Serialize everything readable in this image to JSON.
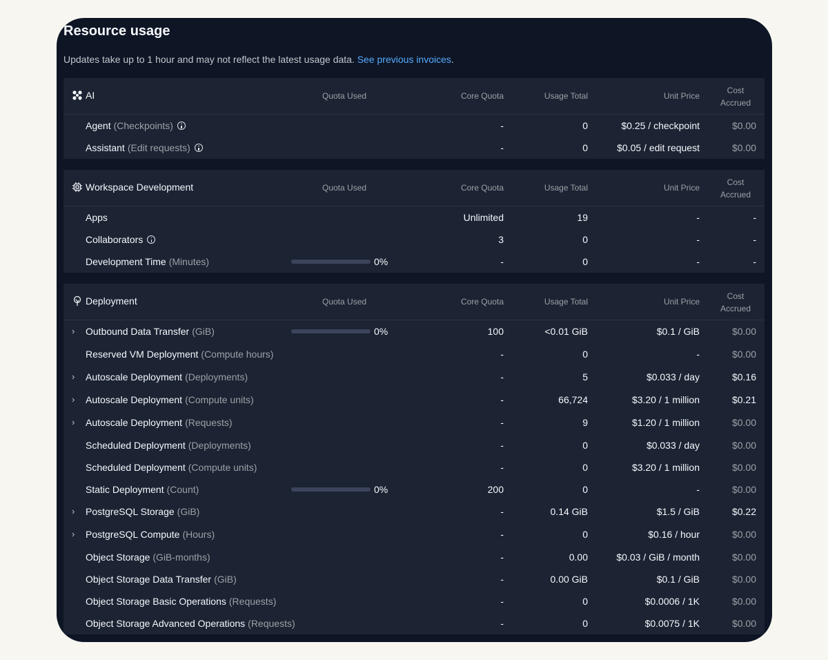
{
  "header": {
    "title": "Resource usage",
    "subtitle": "Updates take up to 1 hour and may not reflect the latest usage data.",
    "link": "See previous invoices",
    "subtitle_end": "."
  },
  "columns": {
    "quota_used": "Quota Used",
    "core_quota": "Core Quota",
    "usage_total": "Usage Total",
    "unit_price": "Unit Price",
    "cost_accrued_1": "Cost",
    "cost_accrued_2": "Accrued"
  },
  "colors": {
    "background": "#0e1525",
    "panel": "#1c2333",
    "link": "#57abff",
    "muted": "#9da2a6"
  },
  "sections": {
    "ai": {
      "title": "AI",
      "icon": "sparkle-grid-icon",
      "rows": [
        {
          "label": "Agent",
          "unit": "(Checkpoints)",
          "core": "-",
          "usage": "0",
          "price": "$0.25 / checkpoint",
          "cost": "$0.00"
        },
        {
          "label": "Assistant",
          "unit": "(Edit requests)",
          "core": "-",
          "usage": "0",
          "price": "$0.05 / edit request",
          "cost": "$0.00"
        }
      ]
    },
    "workspace": {
      "title": "Workspace Development",
      "icon": "chip-icon",
      "rows": [
        {
          "label": "Apps",
          "unit": "",
          "core": "Unlimited",
          "usage": "19",
          "price": "-",
          "cost": "-"
        },
        {
          "label": "Collaborators",
          "unit": "",
          "core": "3",
          "usage": "0",
          "price": "-",
          "cost": "-"
        },
        {
          "label": "Development Time",
          "unit": "(Minutes)",
          "quota_pct": "0%",
          "quota_fraction": 0,
          "core": "-",
          "usage": "0",
          "price": "-",
          "cost": "-"
        }
      ]
    },
    "deployment": {
      "title": "Deployment",
      "icon": "deployment-tree-icon",
      "rows": [
        {
          "label": "Outbound Data Transfer",
          "unit": "(GiB)",
          "quota_pct": "0%",
          "quota_fraction": 0,
          "core": "100",
          "usage": "<0.01 GiB",
          "price": "$0.1 / GiB",
          "cost": "$0.00"
        },
        {
          "label": "Reserved VM Deployment",
          "unit": "(Compute hours)",
          "core": "-",
          "usage": "0",
          "price": "-",
          "cost": "$0.00"
        },
        {
          "label": "Autoscale Deployment",
          "unit": "(Deployments)",
          "core": "-",
          "usage": "5",
          "price": "$0.033 / day",
          "cost": "$0.16"
        },
        {
          "label": "Autoscale Deployment",
          "unit": "(Compute units)",
          "core": "-",
          "usage": "66,724",
          "price": "$3.20 / 1 million",
          "cost": "$0.21"
        },
        {
          "label": "Autoscale Deployment",
          "unit": "(Requests)",
          "core": "-",
          "usage": "9",
          "price": "$1.20 / 1 million",
          "cost": "$0.00"
        },
        {
          "label": "Scheduled Deployment",
          "unit": "(Deployments)",
          "core": "-",
          "usage": "0",
          "price": "$0.033 / day",
          "cost": "$0.00"
        },
        {
          "label": "Scheduled Deployment",
          "unit": "(Compute units)",
          "core": "-",
          "usage": "0",
          "price": "$3.20 / 1 million",
          "cost": "$0.00"
        },
        {
          "label": "Static Deployment",
          "unit": "(Count)",
          "quota_pct": "0%",
          "quota_fraction": 0,
          "core": "200",
          "usage": "0",
          "price": "-",
          "cost": "$0.00"
        },
        {
          "label": "PostgreSQL Storage",
          "unit": "(GiB)",
          "core": "-",
          "usage": "0.14 GiB",
          "price": "$1.5 / GiB",
          "cost": "$0.22"
        },
        {
          "label": "PostgreSQL Compute",
          "unit": "(Hours)",
          "core": "-",
          "usage": "0",
          "price": "$0.16 / hour",
          "cost": "$0.00"
        },
        {
          "label": "Object Storage",
          "unit": "(GiB-months)",
          "core": "-",
          "usage": "0.00",
          "price": "$0.03 / GiB / month",
          "cost": "$0.00"
        },
        {
          "label": "Object Storage Data Transfer",
          "unit": "(GiB)",
          "core": "-",
          "usage": "0.00 GiB",
          "price": "$0.1 / GiB",
          "cost": "$0.00"
        },
        {
          "label": "Object Storage Basic Operations",
          "unit": "(Requests)",
          "core": "-",
          "usage": "0",
          "price": "$0.0006 / 1K",
          "cost": "$0.00"
        },
        {
          "label": "Object Storage Advanced Operations",
          "unit": "(Requests)",
          "core": "-",
          "usage": "0",
          "price": "$0.0075 / 1K",
          "cost": "$0.00"
        }
      ]
    }
  }
}
